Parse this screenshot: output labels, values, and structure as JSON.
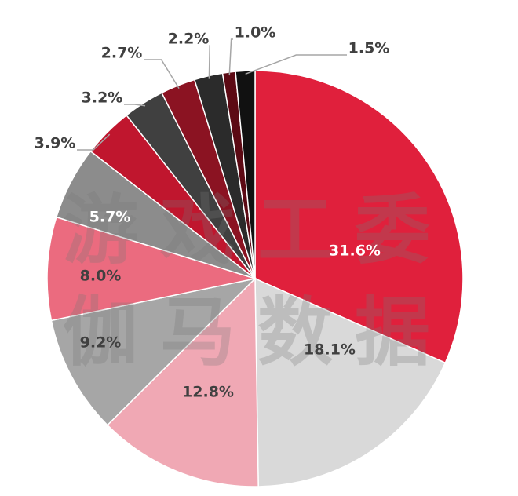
{
  "chart_data": {
    "type": "pie",
    "watermark": [
      "游戏工委",
      "伽马数据"
    ],
    "categories": [
      null,
      null,
      null,
      null,
      null,
      null,
      null,
      null,
      null,
      null,
      null,
      null
    ],
    "values": [
      31.6,
      18.1,
      12.8,
      9.2,
      8.0,
      5.7,
      3.9,
      3.2,
      2.7,
      2.2,
      1.0,
      1.5
    ],
    "value_labels": [
      "31.6%",
      "18.1%",
      "12.8%",
      "9.2%",
      "8.0%",
      "5.7%",
      "3.9%",
      "3.2%",
      "2.7%",
      "2.2%",
      "1.0%",
      "1.5%"
    ],
    "colors": [
      "#e0203c",
      "#d9d9d9",
      "#f0a8b4",
      "#a6a6a6",
      "#eb6b7f",
      "#8c8c8c",
      "#c0162e",
      "#404040",
      "#8b1322",
      "#2b2b2b",
      "#5c0a14",
      "#111111"
    ]
  }
}
